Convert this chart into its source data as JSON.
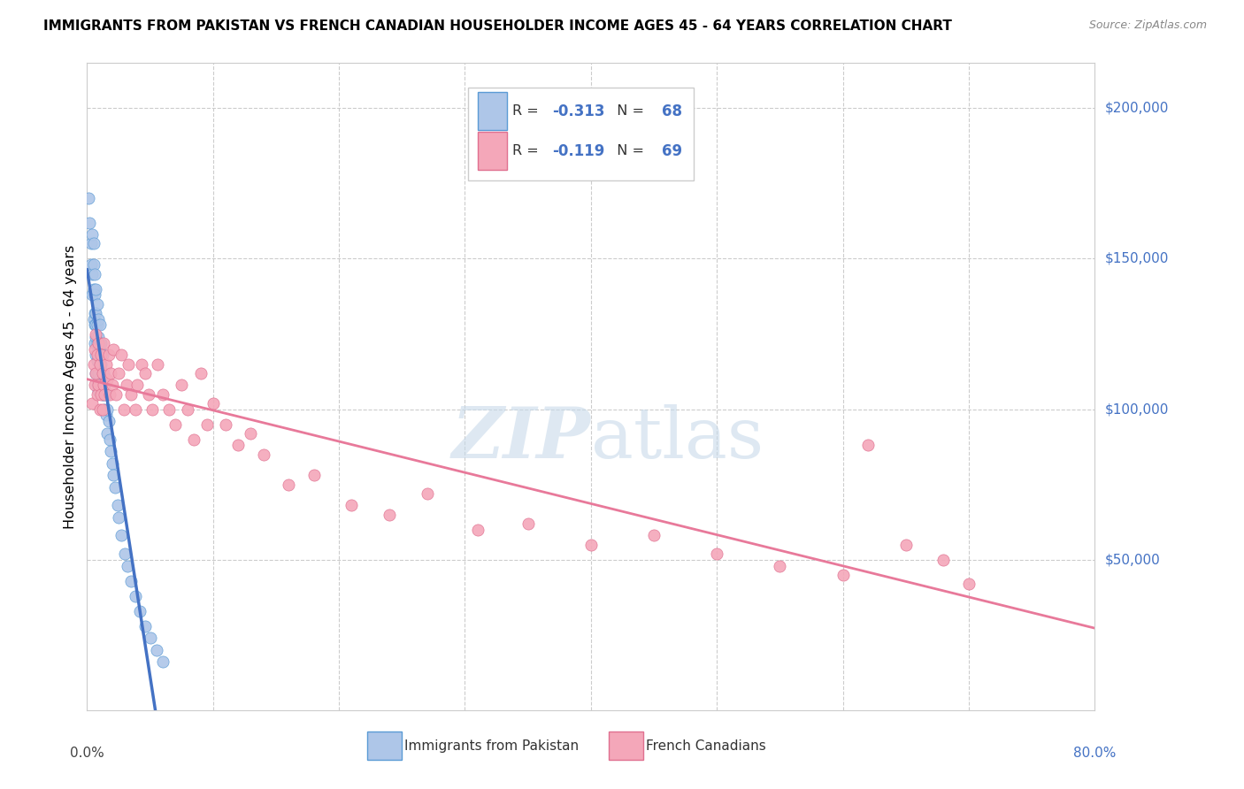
{
  "title": "IMMIGRANTS FROM PAKISTAN VS FRENCH CANADIAN HOUSEHOLDER INCOME AGES 45 - 64 YEARS CORRELATION CHART",
  "source": "Source: ZipAtlas.com",
  "ylabel": "Householder Income Ages 45 - 64 years",
  "r_pakistan": -0.313,
  "n_pakistan": 68,
  "r_french": -0.119,
  "n_french": 69,
  "ytick_vals": [
    50000,
    100000,
    150000,
    200000
  ],
  "ytick_labels": [
    "$50,000",
    "$100,000",
    "$150,000",
    "$200,000"
  ],
  "color_pakistan_fill": "#aec6e8",
  "color_pakistan_edge": "#5b9bd5",
  "color_pakistan_line": "#4472c4",
  "color_french_fill": "#f4a7b9",
  "color_french_edge": "#e07090",
  "color_french_line": "#e8799a",
  "color_dashed": "#b0c4de",
  "watermark_color": "#c8daea",
  "pakistan_x": [
    0.001,
    0.002,
    0.003,
    0.003,
    0.004,
    0.004,
    0.004,
    0.005,
    0.005,
    0.005,
    0.005,
    0.006,
    0.006,
    0.006,
    0.006,
    0.006,
    0.007,
    0.007,
    0.007,
    0.007,
    0.007,
    0.007,
    0.008,
    0.008,
    0.008,
    0.008,
    0.008,
    0.009,
    0.009,
    0.009,
    0.009,
    0.009,
    0.01,
    0.01,
    0.01,
    0.01,
    0.011,
    0.011,
    0.011,
    0.012,
    0.012,
    0.012,
    0.013,
    0.013,
    0.014,
    0.014,
    0.015,
    0.015,
    0.016,
    0.016,
    0.017,
    0.018,
    0.019,
    0.02,
    0.021,
    0.022,
    0.024,
    0.025,
    0.027,
    0.03,
    0.032,
    0.035,
    0.038,
    0.042,
    0.046,
    0.05,
    0.055,
    0.06
  ],
  "pakistan_y": [
    170000,
    162000,
    155000,
    148000,
    158000,
    145000,
    138000,
    155000,
    148000,
    140000,
    130000,
    145000,
    138000,
    132000,
    128000,
    122000,
    140000,
    132000,
    128000,
    124000,
    118000,
    112000,
    135000,
    128000,
    122000,
    116000,
    108000,
    130000,
    124000,
    118000,
    112000,
    106000,
    128000,
    122000,
    115000,
    108000,
    122000,
    115000,
    108000,
    118000,
    112000,
    105000,
    112000,
    105000,
    108000,
    100000,
    105000,
    98000,
    100000,
    92000,
    96000,
    90000,
    86000,
    82000,
    78000,
    74000,
    68000,
    64000,
    58000,
    52000,
    48000,
    43000,
    38000,
    33000,
    28000,
    24000,
    20000,
    16000
  ],
  "french_x": [
    0.004,
    0.005,
    0.006,
    0.006,
    0.007,
    0.007,
    0.008,
    0.008,
    0.009,
    0.009,
    0.01,
    0.01,
    0.011,
    0.011,
    0.012,
    0.012,
    0.013,
    0.013,
    0.014,
    0.015,
    0.016,
    0.017,
    0.018,
    0.019,
    0.02,
    0.021,
    0.023,
    0.025,
    0.027,
    0.029,
    0.031,
    0.033,
    0.035,
    0.038,
    0.04,
    0.043,
    0.046,
    0.049,
    0.052,
    0.056,
    0.06,
    0.065,
    0.07,
    0.075,
    0.08,
    0.085,
    0.09,
    0.095,
    0.1,
    0.11,
    0.12,
    0.13,
    0.14,
    0.16,
    0.18,
    0.21,
    0.24,
    0.27,
    0.31,
    0.35,
    0.4,
    0.45,
    0.5,
    0.55,
    0.6,
    0.62,
    0.65,
    0.68,
    0.7
  ],
  "french_y": [
    102000,
    115000,
    108000,
    120000,
    112000,
    125000,
    105000,
    118000,
    108000,
    122000,
    100000,
    115000,
    105000,
    118000,
    100000,
    112000,
    108000,
    122000,
    105000,
    115000,
    110000,
    118000,
    105000,
    112000,
    108000,
    120000,
    105000,
    112000,
    118000,
    100000,
    108000,
    115000,
    105000,
    100000,
    108000,
    115000,
    112000,
    105000,
    100000,
    115000,
    105000,
    100000,
    95000,
    108000,
    100000,
    90000,
    112000,
    95000,
    102000,
    95000,
    88000,
    92000,
    85000,
    75000,
    78000,
    68000,
    65000,
    72000,
    60000,
    62000,
    55000,
    58000,
    52000,
    48000,
    45000,
    88000,
    55000,
    50000,
    42000
  ]
}
